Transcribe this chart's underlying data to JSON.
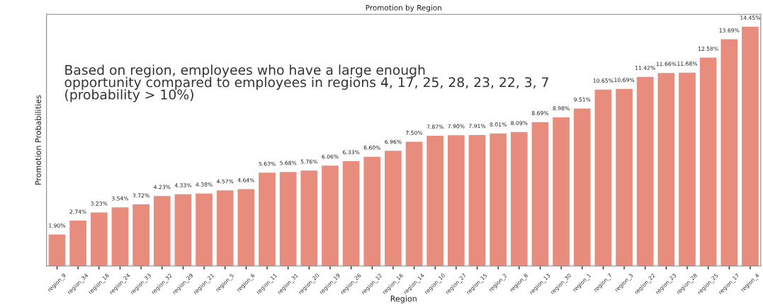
{
  "chart_data": {
    "type": "bar",
    "title": "Promotion by Region",
    "xlabel": "Region",
    "ylabel": "Promotion Probabilities",
    "annotations": [
      "Based on region, employees who have a large enough\nopportunity compared to employees in regions 4, 17, 25, 28, 23, 22, 3, 7\n(probability > 10%)"
    ],
    "categories": [
      "region_9",
      "region_34",
      "region_18",
      "region_24",
      "region_33",
      "region_32",
      "region_29",
      "region_21",
      "region_5",
      "region_6",
      "region_11",
      "region_31",
      "region_20",
      "region_19",
      "region_26",
      "region_12",
      "region_16",
      "region_14",
      "region_10",
      "region_27",
      "region_15",
      "region_2",
      "region_8",
      "region_13",
      "region_30",
      "region_1",
      "region_7",
      "region_3",
      "region_22",
      "region_23",
      "region_28",
      "region_25",
      "region_17",
      "region_4"
    ],
    "values": [
      1.9,
      2.74,
      3.23,
      3.54,
      3.72,
      4.23,
      4.33,
      4.38,
      4.57,
      4.64,
      5.63,
      5.68,
      5.76,
      6.06,
      6.33,
      6.6,
      6.96,
      7.5,
      7.87,
      7.9,
      7.91,
      8.01,
      8.09,
      8.69,
      8.98,
      9.51,
      10.65,
      10.69,
      11.42,
      11.66,
      11.68,
      12.58,
      13.69,
      14.45
    ],
    "value_labels": [
      "1.90%",
      "2.74%",
      "3.23%",
      "3.54%",
      "3.72%",
      "4.23%",
      "4.33%",
      "4.38%",
      "4.57%",
      "4.64%",
      "5.63%",
      "5.68%",
      "5.76%",
      "6.06%",
      "6.33%",
      "6.60%",
      "6.96%",
      "7.50%",
      "7.87%",
      "7.90%",
      "7.91%",
      "8.01%",
      "8.09%",
      "8.69%",
      "8.98%",
      "9.51%",
      "10.65%",
      "10.69%",
      "11.42%",
      "11.66%",
      "11.68%",
      "12.58%",
      "13.69%",
      "14.45%"
    ],
    "color": "#e88c7d",
    "ylim": [
      0,
      15.2
    ],
    "tick_labels": "x",
    "grid": false,
    "legend": false
  }
}
